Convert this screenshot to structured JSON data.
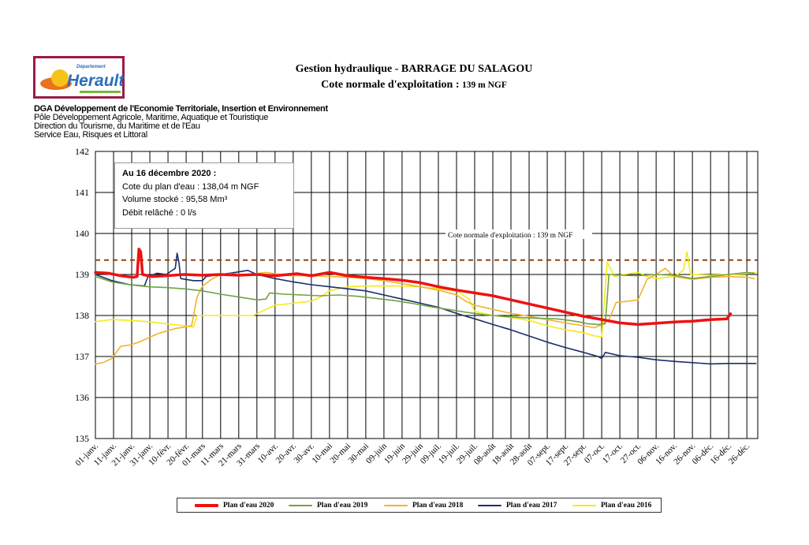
{
  "header": {
    "title": "Gestion hydraulique - BARRAGE DU SALAGOU",
    "subtitle_main": "Cote normale d'exploitation :",
    "subtitle_value": "139 m NGF",
    "logo_small": "Département",
    "logo_name": "Herault",
    "org_lines": [
      "DGA Développement de l'Economie Territoriale, Insertion et Environnement",
      "Pôle Développement Agricole, Maritime, Aquatique et Touristique",
      "Direction du Tourisme, du Maritime et de l'Eau",
      "Service Eau, Risques et Littoral"
    ]
  },
  "infobox": {
    "date_line": "Au 16 décembre 2020 :",
    "cote": "Cote du plan d'eau : 138,04 m NGF",
    "volume": "Volume stocké : 95,58 Mm³",
    "debit": "Débit relâché : 0 l/s"
  },
  "chart_data": {
    "type": "line",
    "ylim": [
      135,
      142
    ],
    "yticks": [
      135,
      136,
      137,
      138,
      139,
      140,
      141,
      142
    ],
    "xlim": [
      1,
      366
    ],
    "x_tick_days": [
      1,
      11,
      21,
      31,
      41,
      51,
      60,
      70,
      80,
      90,
      100,
      110,
      120,
      130,
      140,
      150,
      160,
      170,
      180,
      190,
      200,
      210,
      220,
      230,
      240,
      250,
      260,
      270,
      280,
      290,
      300,
      310,
      320,
      330,
      340,
      350,
      360
    ],
    "x_tick_labels": [
      "01-janv.",
      "11-janv.",
      "21-janv.",
      "31-janv.",
      "10-févr.",
      "20-févr.",
      "01-mars",
      "11-mars",
      "21-mars",
      "31-mars",
      "10-avr.",
      "20-avr.",
      "30-avr.",
      "10-mai",
      "20-mai",
      "30-mai",
      "09-juin",
      "19-juin",
      "29-juin",
      "09-juil.",
      "19-juil.",
      "29-juil.",
      "08-août",
      "18-août",
      "28-août",
      "07-sept.",
      "17-sept.",
      "27-sept.",
      "07-oct.",
      "17-oct.",
      "27-oct.",
      "06-nov.",
      "16-nov.",
      "26-nov.",
      "06-déc.",
      "16-déc.",
      "26-déc."
    ],
    "reference_line": {
      "value": 139.35,
      "label": "Cote normale d'exploitation : 139 m NGF",
      "color": "#8b4513"
    },
    "grid": true,
    "legend_position": "bottom",
    "series": [
      {
        "name": "Plan d'eau 2020",
        "color": "#ee1111",
        "width": 3.5,
        "points": [
          [
            1,
            139.05
          ],
          [
            8,
            139.03
          ],
          [
            15,
            138.97
          ],
          [
            22,
            138.93
          ],
          [
            24,
            138.95
          ],
          [
            25,
            139.62
          ],
          [
            26,
            139.55
          ],
          [
            27,
            139.0
          ],
          [
            32,
            138.95
          ],
          [
            40,
            138.97
          ],
          [
            50,
            139.0
          ],
          [
            60,
            138.98
          ],
          [
            70,
            139.0
          ],
          [
            80,
            138.98
          ],
          [
            90,
            139.0
          ],
          [
            100,
            138.97
          ],
          [
            112,
            139.02
          ],
          [
            120,
            138.97
          ],
          [
            130,
            139.05
          ],
          [
            140,
            138.97
          ],
          [
            150,
            138.93
          ],
          [
            160,
            138.9
          ],
          [
            170,
            138.86
          ],
          [
            180,
            138.8
          ],
          [
            190,
            138.7
          ],
          [
            200,
            138.62
          ],
          [
            210,
            138.55
          ],
          [
            220,
            138.48
          ],
          [
            230,
            138.38
          ],
          [
            240,
            138.28
          ],
          [
            250,
            138.18
          ],
          [
            260,
            138.08
          ],
          [
            270,
            137.98
          ],
          [
            280,
            137.9
          ],
          [
            290,
            137.82
          ],
          [
            300,
            137.78
          ],
          [
            310,
            137.81
          ],
          [
            320,
            137.84
          ],
          [
            330,
            137.86
          ],
          [
            340,
            137.9
          ],
          [
            349,
            137.92
          ],
          [
            351,
            138.04
          ]
        ]
      },
      {
        "name": "Plan d'eau 2019",
        "color": "#6fa342",
        "width": 1.6,
        "points": [
          [
            1,
            138.95
          ],
          [
            10,
            138.82
          ],
          [
            20,
            138.75
          ],
          [
            30,
            138.7
          ],
          [
            40,
            138.68
          ],
          [
            50,
            138.65
          ],
          [
            60,
            138.6
          ],
          [
            70,
            138.52
          ],
          [
            80,
            138.45
          ],
          [
            90,
            138.38
          ],
          [
            95,
            138.4
          ],
          [
            97,
            138.55
          ],
          [
            105,
            138.52
          ],
          [
            115,
            138.5
          ],
          [
            125,
            138.48
          ],
          [
            135,
            138.5
          ],
          [
            145,
            138.47
          ],
          [
            155,
            138.42
          ],
          [
            165,
            138.37
          ],
          [
            175,
            138.3
          ],
          [
            185,
            138.22
          ],
          [
            195,
            138.15
          ],
          [
            205,
            138.08
          ],
          [
            215,
            138.02
          ],
          [
            225,
            137.98
          ],
          [
            235,
            137.95
          ],
          [
            245,
            137.93
          ],
          [
            255,
            137.92
          ],
          [
            262,
            137.88
          ],
          [
            268,
            137.84
          ],
          [
            272,
            137.8
          ],
          [
            278,
            137.78
          ],
          [
            282,
            137.8
          ],
          [
            284,
            139.0
          ],
          [
            290,
            138.98
          ],
          [
            300,
            138.97
          ],
          [
            310,
            139.0
          ],
          [
            320,
            138.98
          ],
          [
            330,
            138.9
          ],
          [
            340,
            138.95
          ],
          [
            350,
            139.0
          ],
          [
            360,
            139.05
          ],
          [
            364,
            139.03
          ]
        ]
      },
      {
        "name": "Plan d'eau 2018",
        "color": "#f2b32a",
        "width": 1.6,
        "points": [
          [
            1,
            136.82
          ],
          [
            5,
            136.85
          ],
          [
            10,
            136.95
          ],
          [
            15,
            137.25
          ],
          [
            20,
            137.28
          ],
          [
            25,
            137.35
          ],
          [
            30,
            137.45
          ],
          [
            35,
            137.55
          ],
          [
            40,
            137.62
          ],
          [
            45,
            137.68
          ],
          [
            50,
            137.72
          ],
          [
            54,
            137.75
          ],
          [
            57,
            138.45
          ],
          [
            60,
            138.72
          ],
          [
            65,
            138.88
          ],
          [
            70,
            139.0
          ],
          [
            75,
            139.02
          ],
          [
            85,
            139.0
          ],
          [
            95,
            139.05
          ],
          [
            103,
            139.0
          ],
          [
            108,
            138.97
          ],
          [
            120,
            138.97
          ],
          [
            130,
            138.95
          ],
          [
            140,
            138.93
          ],
          [
            150,
            138.9
          ],
          [
            160,
            138.85
          ],
          [
            170,
            138.78
          ],
          [
            180,
            138.7
          ],
          [
            190,
            138.62
          ],
          [
            200,
            138.5
          ],
          [
            205,
            138.35
          ],
          [
            210,
            138.25
          ],
          [
            220,
            138.15
          ],
          [
            230,
            138.05
          ],
          [
            240,
            137.98
          ],
          [
            250,
            137.9
          ],
          [
            260,
            137.82
          ],
          [
            270,
            137.75
          ],
          [
            276,
            137.7
          ],
          [
            280,
            137.78
          ],
          [
            284,
            137.9
          ],
          [
            288,
            138.32
          ],
          [
            295,
            138.35
          ],
          [
            300,
            138.38
          ],
          [
            305,
            138.88
          ],
          [
            310,
            139.0
          ],
          [
            315,
            139.15
          ],
          [
            320,
            138.95
          ],
          [
            330,
            138.88
          ],
          [
            340,
            138.93
          ],
          [
            350,
            138.95
          ],
          [
            360,
            138.93
          ],
          [
            364,
            138.9
          ]
        ]
      },
      {
        "name": "Plan d'eau 2017",
        "color": "#1a2f6b",
        "width": 1.6,
        "points": [
          [
            1,
            139.0
          ],
          [
            10,
            138.85
          ],
          [
            20,
            138.75
          ],
          [
            28,
            138.72
          ],
          [
            30,
            138.95
          ],
          [
            35,
            139.03
          ],
          [
            40,
            139.0
          ],
          [
            45,
            139.15
          ],
          [
            46,
            139.52
          ],
          [
            47,
            139.3
          ],
          [
            48,
            138.9
          ],
          [
            55,
            138.85
          ],
          [
            60,
            138.85
          ],
          [
            62,
            138.95
          ],
          [
            70,
            139.0
          ],
          [
            78,
            139.05
          ],
          [
            85,
            139.1
          ],
          [
            90,
            139.0
          ],
          [
            100,
            138.9
          ],
          [
            110,
            138.82
          ],
          [
            120,
            138.75
          ],
          [
            130,
            138.7
          ],
          [
            140,
            138.65
          ],
          [
            150,
            138.6
          ],
          [
            160,
            138.5
          ],
          [
            170,
            138.4
          ],
          [
            180,
            138.3
          ],
          [
            190,
            138.2
          ],
          [
            200,
            138.05
          ],
          [
            210,
            137.92
          ],
          [
            220,
            137.78
          ],
          [
            230,
            137.65
          ],
          [
            240,
            137.5
          ],
          [
            250,
            137.35
          ],
          [
            260,
            137.22
          ],
          [
            270,
            137.1
          ],
          [
            278,
            137.0
          ],
          [
            280,
            136.95
          ],
          [
            282,
            137.1
          ],
          [
            290,
            137.02
          ],
          [
            300,
            136.98
          ],
          [
            310,
            136.92
          ],
          [
            320,
            136.88
          ],
          [
            330,
            136.85
          ],
          [
            340,
            136.82
          ],
          [
            350,
            136.83
          ],
          [
            360,
            136.83
          ],
          [
            365,
            136.83
          ]
        ]
      },
      {
        "name": "Plan d'eau 2016",
        "color": "#f5ea1a",
        "width": 1.6,
        "points": [
          [
            1,
            137.85
          ],
          [
            10,
            137.9
          ],
          [
            20,
            137.88
          ],
          [
            30,
            137.85
          ],
          [
            40,
            137.8
          ],
          [
            50,
            137.75
          ],
          [
            55,
            137.72
          ],
          [
            57,
            138.0
          ],
          [
            65,
            138.0
          ],
          [
            75,
            138.0
          ],
          [
            88,
            138.0
          ],
          [
            95,
            138.15
          ],
          [
            100,
            138.25
          ],
          [
            110,
            138.3
          ],
          [
            120,
            138.35
          ],
          [
            125,
            138.45
          ],
          [
            130,
            138.6
          ],
          [
            140,
            138.7
          ],
          [
            150,
            138.72
          ],
          [
            160,
            138.72
          ],
          [
            170,
            138.72
          ],
          [
            180,
            138.7
          ],
          [
            190,
            138.65
          ],
          [
            200,
            138.6
          ],
          [
            207,
            138.4
          ],
          [
            210,
            138.1
          ],
          [
            220,
            138.0
          ],
          [
            230,
            137.95
          ],
          [
            240,
            137.88
          ],
          [
            250,
            137.75
          ],
          [
            260,
            137.65
          ],
          [
            270,
            137.58
          ],
          [
            276,
            137.5
          ],
          [
            280,
            137.48
          ],
          [
            283,
            139.3
          ],
          [
            287,
            138.95
          ],
          [
            292,
            139.0
          ],
          [
            300,
            139.05
          ],
          [
            305,
            138.95
          ],
          [
            310,
            138.9
          ],
          [
            320,
            138.95
          ],
          [
            325,
            139.1
          ],
          [
            327,
            139.55
          ],
          [
            329,
            139.0
          ],
          [
            340,
            138.98
          ],
          [
            350,
            139.0
          ],
          [
            360,
            139.02
          ],
          [
            365,
            139.05
          ]
        ]
      }
    ]
  }
}
